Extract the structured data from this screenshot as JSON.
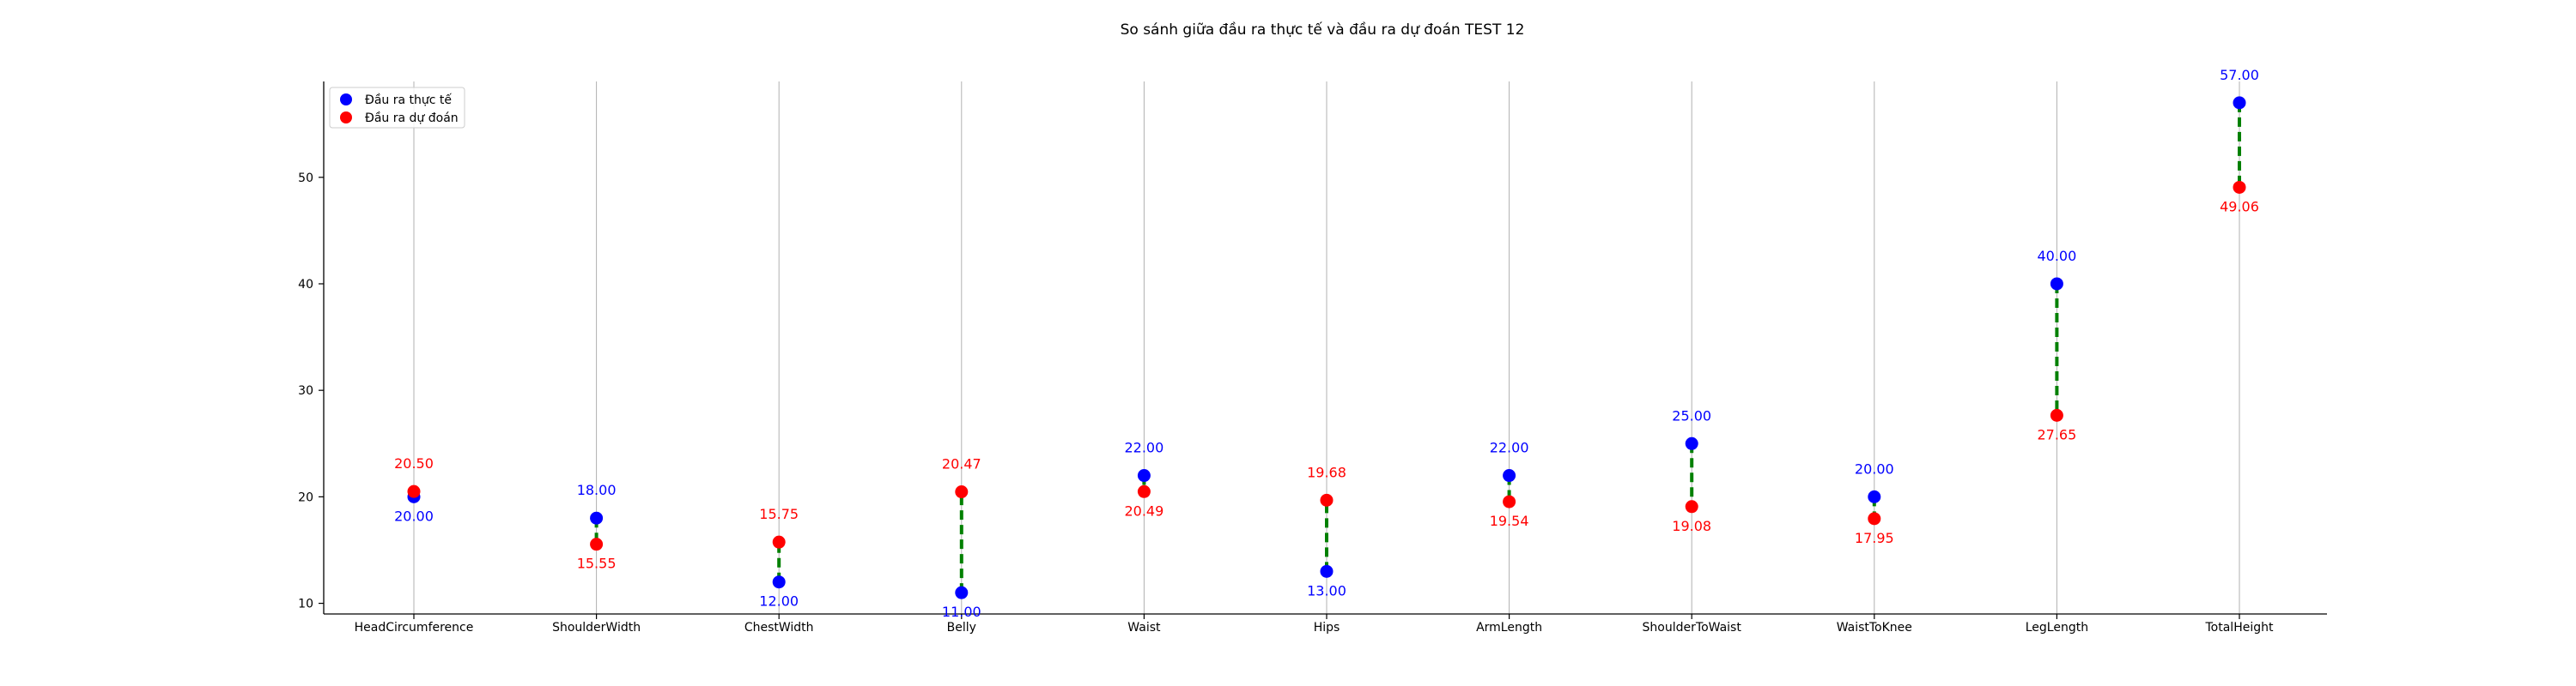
{
  "chart_data": {
    "type": "scatter",
    "title": "So sánh giữa đầu ra thực tế và đầu ra dự đoán TEST 12",
    "xlabel": "",
    "ylabel": "",
    "categories": [
      "HeadCircumference",
      "ShoulderWidth",
      "ChestWidth",
      "Belly",
      "Waist",
      "Hips",
      "ArmLength",
      "ShoulderToWaist",
      "WaistToKnee",
      "LegLength",
      "TotalHeight"
    ],
    "series": [
      {
        "name": "Đầu ra thực tế",
        "color": "#0000ff",
        "values": [
          20.0,
          18.0,
          12.0,
          11.0,
          22.0,
          13.0,
          22.0,
          25.0,
          20.0,
          40.0,
          57.0
        ],
        "labels": [
          "20.00",
          "18.00",
          "12.00",
          "11.00",
          "22.00",
          "13.00",
          "22.00",
          "25.00",
          "20.00",
          "40.00",
          "57.00"
        ]
      },
      {
        "name": "Đầu ra dự đoán",
        "color": "#ff0000",
        "values": [
          20.5,
          15.55,
          15.75,
          20.47,
          20.49,
          19.68,
          19.54,
          19.08,
          17.95,
          27.65,
          49.06
        ],
        "labels": [
          "20.50",
          "15.55",
          "15.75",
          "20.47",
          "20.49",
          "19.68",
          "19.54",
          "19.08",
          "17.95",
          "27.65",
          "49.06"
        ]
      }
    ],
    "connector_color": "#008000",
    "ylim": [
      9,
      59
    ],
    "yticks": [
      "10",
      "20",
      "30",
      "40",
      "50"
    ],
    "grid": "vertical",
    "legend": "top-left"
  }
}
